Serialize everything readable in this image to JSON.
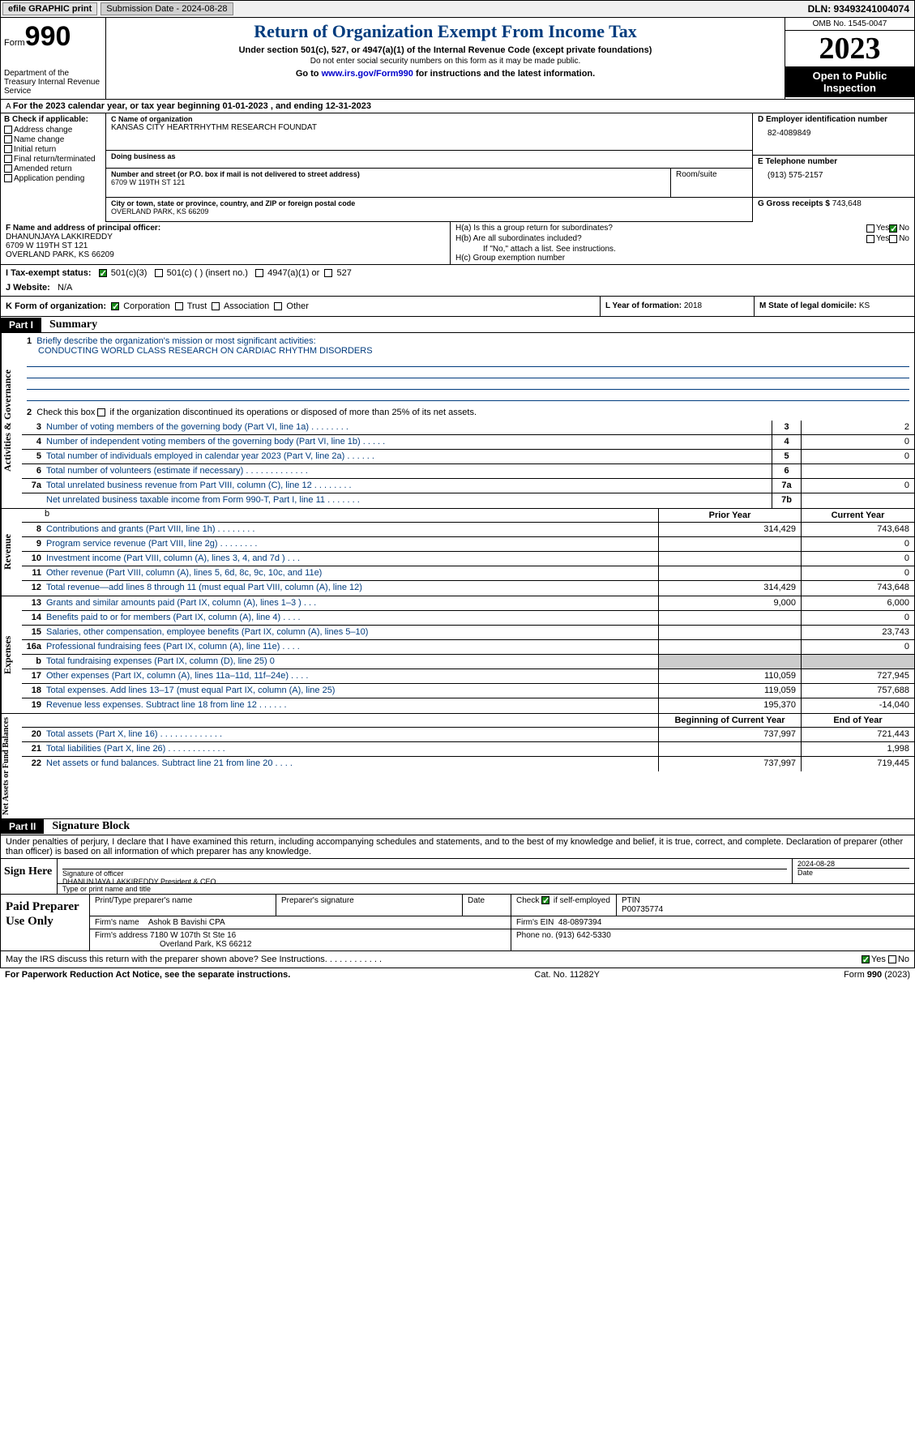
{
  "topbar": {
    "efile_btn": "efile GRAPHIC print",
    "submission": "Submission Date - 2024-08-28",
    "dln": "DLN: 93493241004074"
  },
  "header": {
    "form_prefix": "Form",
    "form_number": "990",
    "dept": "Department of the Treasury Internal Revenue Service",
    "title": "Return of Organization Exempt From Income Tax",
    "sub1": "Under section 501(c), 527, or 4947(a)(1) of the Internal Revenue Code (except private foundations)",
    "sub2": "Do not enter social security numbers on this form as it may be made public.",
    "sub3_prefix": "Go to ",
    "sub3_link": "www.irs.gov/Form990",
    "sub3_suffix": " for instructions and the latest information.",
    "omb": "OMB No. 1545-0047",
    "year": "2023",
    "oti": "Open to Public Inspection"
  },
  "lineA": "For the 2023 calendar year, or tax year beginning 01-01-2023    , and ending 12-31-2023",
  "B": {
    "lbl": "B Check if applicable:",
    "opts": [
      "Address change",
      "Name change",
      "Initial return",
      "Final return/terminated",
      "Amended return",
      "Application pending"
    ]
  },
  "C": {
    "name_lbl": "C Name of organization",
    "name": "KANSAS CITY HEARTRHYTHM RESEARCH FOUNDAT",
    "dba_lbl": "Doing business as",
    "street_lbl": "Number and street (or P.O. box if mail is not delivered to street address)",
    "room_lbl": "Room/suite",
    "street": "6709 W 119TH ST 121",
    "city_lbl": "City or town, state or province, country, and ZIP or foreign postal code",
    "city": "OVERLAND PARK, KS  66209"
  },
  "D": {
    "ein_lbl": "D Employer identification number",
    "ein": "82-4089849",
    "tel_lbl": "E Telephone number",
    "tel": "(913) 575-2157",
    "gross_lbl": "G Gross receipts $ ",
    "gross": "743,648"
  },
  "F": {
    "lbl": "F  Name and address of principal officer:",
    "name": "DHANUNJAYA LAKKIREDDY",
    "addr1": "6709 W 119TH ST 121",
    "addr2": "OVERLAND PARK, KS  66209"
  },
  "H": {
    "ha": "H(a)  Is this a group return for subordinates?",
    "hb": "H(b)  Are all subordinates included?",
    "hb_note": "If \"No,\" attach a list. See instructions.",
    "hc": "H(c)  Group exemption number",
    "yes": "Yes",
    "no": "No"
  },
  "I": {
    "lbl": "I    Tax-exempt status:",
    "o1": "501(c)(3)",
    "o2": "501(c) (  ) (insert no.)",
    "o3": "4947(a)(1) or",
    "o4": "527"
  },
  "J": {
    "lbl": "J   Website:",
    "val": "N/A"
  },
  "K": {
    "lbl": "K Form of organization:",
    "corp": "Corporation",
    "trust": "Trust",
    "assoc": "Association",
    "other": "Other"
  },
  "L": {
    "lbl": "L Year of formation:",
    "val": "2018"
  },
  "M": {
    "lbl": "M State of legal domicile:",
    "val": "KS"
  },
  "part1": {
    "num": "Part I",
    "title": "Summary"
  },
  "gov": {
    "label": "Activities & Governance",
    "l1_lbl": "Briefly describe the organization's mission or most significant activities:",
    "l1_val": "CONDUCTING WORLD CLASS RESEARCH ON CARDIAC RHYTHM DISORDERS",
    "l2": "Check this box      if the organization discontinued its operations or disposed of more than 25% of its net assets.",
    "l3": "Number of voting members of the governing body (Part VI, line 1a)   .    .    .    .    .    .    .    .",
    "l3v": "2",
    "l4": "Number of independent voting members of the governing body (Part VI, line 1b)   .    .    .    .    .",
    "l4v": "0",
    "l5": "Total number of individuals employed in calendar year 2023 (Part V, line 2a)   .    .    .    .    .    .",
    "l5v": "0",
    "l6": "Total number of volunteers (estimate if necessary)   .    .    .    .    .    .    .    .    .    .    .    .    .",
    "l6v": "",
    "l7a": "Total unrelated business revenue from Part VIII, column (C), line 12   .    .    .    .    .    .    .    .",
    "l7av": "0",
    "l7b": "Net unrelated business taxable income from Form 990-T, Part I, line 11   .    .    .    .    .    .    .",
    "l7bv": ""
  },
  "rev": {
    "label": "Revenue",
    "hdr_prior": "Prior Year",
    "hdr_curr": "Current Year",
    "rows": [
      {
        "n": "8",
        "t": "Contributions and grants (Part VIII, line 1h)   .    .    .    .    .    .    .    .",
        "p": "314,429",
        "c": "743,648"
      },
      {
        "n": "9",
        "t": "Program service revenue (Part VIII, line 2g)   .    .    .    .    .    .    .    .",
        "p": "",
        "c": "0"
      },
      {
        "n": "10",
        "t": "Investment income (Part VIII, column (A), lines 3, 4, and 7d )   .    .    .",
        "p": "",
        "c": "0"
      },
      {
        "n": "11",
        "t": "Other revenue (Part VIII, column (A), lines 5, 6d, 8c, 9c, 10c, and 11e)",
        "p": "",
        "c": "0"
      },
      {
        "n": "12",
        "t": "Total revenue—add lines 8 through 11 (must equal Part VIII, column (A), line 12)",
        "p": "314,429",
        "c": "743,648"
      }
    ]
  },
  "exp": {
    "label": "Expenses",
    "rows": [
      {
        "n": "13",
        "t": "Grants and similar amounts paid (Part IX, column (A), lines 1–3 )   .    .    .",
        "p": "9,000",
        "c": "6,000"
      },
      {
        "n": "14",
        "t": "Benefits paid to or for members (Part IX, column (A), line 4)   .    .    .    .",
        "p": "",
        "c": "0"
      },
      {
        "n": "15",
        "t": "Salaries, other compensation, employee benefits (Part IX, column (A), lines 5–10)",
        "p": "",
        "c": "23,743"
      },
      {
        "n": "16a",
        "t": "Professional fundraising fees (Part IX, column (A), line 11e)   .    .    .    .",
        "p": "",
        "c": "0"
      },
      {
        "n": "b",
        "t": "Total fundraising expenses (Part IX, column (D), line 25) 0",
        "p": "shade",
        "c": "shade"
      },
      {
        "n": "17",
        "t": "Other expenses (Part IX, column (A), lines 11a–11d, 11f–24e)   .    .    .    .",
        "p": "110,059",
        "c": "727,945"
      },
      {
        "n": "18",
        "t": "Total expenses. Add lines 13–17 (must equal Part IX, column (A), line 25)",
        "p": "119,059",
        "c": "757,688"
      },
      {
        "n": "19",
        "t": "Revenue less expenses. Subtract line 18 from line 12   .    .    .    .    .    .",
        "p": "195,370",
        "c": "-14,040"
      }
    ]
  },
  "net": {
    "label": "Net Assets or Fund Balances",
    "hdr_begin": "Beginning of Current Year",
    "hdr_end": "End of Year",
    "rows": [
      {
        "n": "20",
        "t": "Total assets (Part X, line 16)   .    .    .    .    .    .    .    .    .    .    .    .    .",
        "p": "737,997",
        "c": "721,443"
      },
      {
        "n": "21",
        "t": "Total liabilities (Part X, line 26)   .    .    .    .    .    .    .    .    .    .    .    .",
        "p": "",
        "c": "1,998"
      },
      {
        "n": "22",
        "t": "Net assets or fund balances. Subtract line 21 from line 20   .    .    .    .",
        "p": "737,997",
        "c": "719,445"
      }
    ]
  },
  "part2": {
    "num": "Part II",
    "title": "Signature Block"
  },
  "sigTxt": "Under penalties of perjury, I declare that I have examined this return, including accompanying schedules and statements, and to the best of my knowledge and belief, it is true, correct, and complete. Declaration of preparer (other than officer) is based on all information of which preparer has any knowledge.",
  "sign": {
    "lbl": "Sign Here",
    "sig_lbl": "Signature of officer",
    "officer": "DHANUNJAYA LAKKIREDDY  President & CEO",
    "type_lbl": "Type or print name and title",
    "date_lbl": "Date",
    "date": "2024-08-28"
  },
  "paid": {
    "lbl": "Paid Preparer Use Only",
    "pname_lbl": "Print/Type preparer's name",
    "psig_lbl": "Preparer's signature",
    "pdate_lbl": "Date",
    "pself_lbl": "Check       if self-employed",
    "ptin_lbl": "PTIN",
    "ptin": "P00735774",
    "firm_lbl": "Firm's name",
    "firm": "Ashok B Bavishi CPA",
    "fein_lbl": "Firm's EIN",
    "fein": "48-0897394",
    "faddr_lbl": "Firm's address",
    "faddr1": "7180 W 107th St Ste 16",
    "faddr2": "Overland Park, KS  66212",
    "fphone_lbl": "Phone no.",
    "fphone": "(913) 642-5330"
  },
  "mayIRS": "May the IRS discuss this return with the preparer shown above? See Instructions.   .    .    .    .    .    .    .    .    .    .    .",
  "footer": {
    "left": "For Paperwork Reduction Act Notice, see the separate instructions.",
    "mid": "Cat. No. 11282Y",
    "right": "Form 990 (2023)"
  }
}
